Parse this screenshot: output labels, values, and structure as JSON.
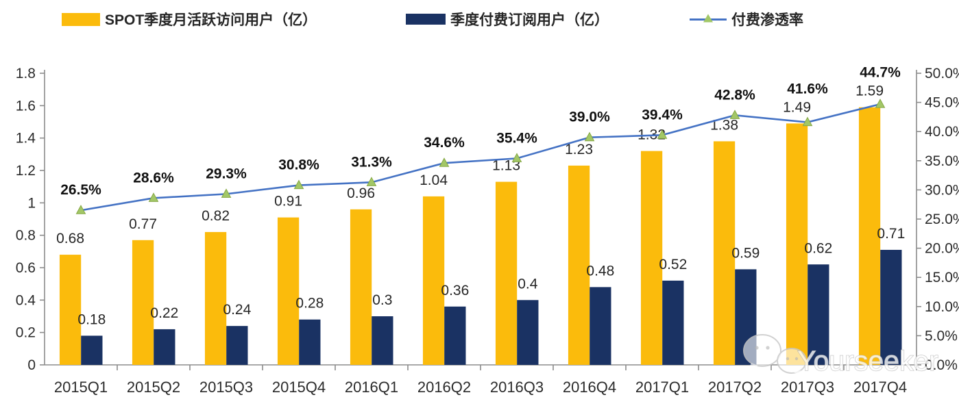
{
  "legend": {
    "items": [
      {
        "label": "SPOT季度月活跃访问用户（亿）",
        "type": "bar",
        "color": "#FBBB0C"
      },
      {
        "label": "季度付费订阅用户（亿）",
        "type": "bar",
        "color": "#1A3263"
      },
      {
        "label": "付费渗透率",
        "type": "line",
        "color": "#4472C4",
        "marker_color": "#A2C767"
      }
    ]
  },
  "watermark": {
    "text": "Yourseeker",
    "icon": "wechat-bubbles-icon"
  },
  "chart_data": {
    "type": "combo-bar-line",
    "title": "",
    "categories": [
      "2015Q1",
      "2015Q2",
      "2015Q3",
      "2015Q4",
      "2016Q1",
      "2016Q2",
      "2016Q3",
      "2016Q4",
      "2017Q1",
      "2017Q2",
      "2017Q3",
      "2017Q4"
    ],
    "series": [
      {
        "name": "SPOT季度月活跃访问用户（亿）",
        "type": "bar",
        "axis": "left",
        "color": "#FBBB0C",
        "values": [
          0.68,
          0.77,
          0.82,
          0.91,
          0.96,
          1.04,
          1.13,
          1.23,
          1.32,
          1.38,
          1.49,
          1.59
        ]
      },
      {
        "name": "季度付费订阅用户（亿）",
        "type": "bar",
        "axis": "left",
        "color": "#1A3263",
        "values": [
          0.18,
          0.22,
          0.24,
          0.28,
          0.3,
          0.36,
          0.4,
          0.48,
          0.52,
          0.59,
          0.62,
          0.71
        ]
      },
      {
        "name": "付费渗透率",
        "type": "line",
        "axis": "right",
        "color": "#4472C4",
        "marker": "triangle",
        "marker_color": "#A2C767",
        "values": [
          26.5,
          28.6,
          29.3,
          30.8,
          31.3,
          34.6,
          35.4,
          39.0,
          39.4,
          42.8,
          41.6,
          44.7
        ]
      }
    ],
    "left_axis": {
      "min": 0,
      "max": 1.8,
      "tick_labels": [
        "0",
        "0.2",
        "0.4",
        "0.6",
        "0.8",
        "1",
        "1.2",
        "1.4",
        "1.6",
        "1.8"
      ]
    },
    "right_axis": {
      "min": 0,
      "max": 50,
      "tick_labels": [
        "0.0%",
        "5.0%",
        "10.0%",
        "15.0%",
        "20.0%",
        "25.0%",
        "30.0%",
        "35.0%",
        "40.0%",
        "45.0%",
        "50.0%"
      ]
    },
    "grid": false,
    "legend_position": "top",
    "axis_color": "#8C8C8C",
    "text_color": "#2B2B2B"
  }
}
